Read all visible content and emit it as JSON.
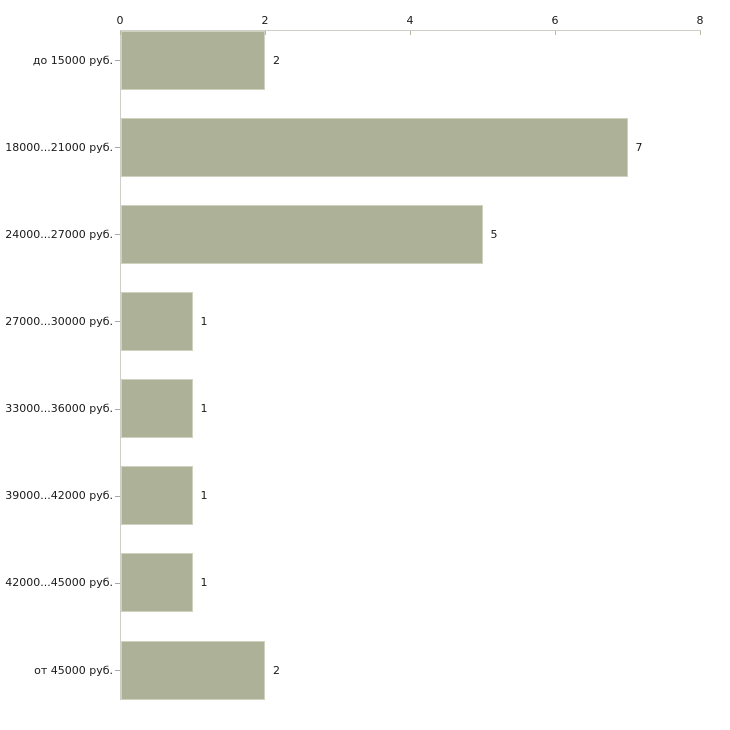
{
  "page": {
    "background": "#ffffff"
  },
  "chart_data": {
    "type": "bar",
    "orientation": "horizontal",
    "title": "",
    "xlabel": "",
    "ylabel": "",
    "grid": false,
    "legend": false,
    "x_axis": {
      "position": "top",
      "min": 0,
      "max": 8,
      "ticks": [
        0,
        2,
        4,
        6,
        8
      ]
    },
    "categories": [
      "до 15000 руб.",
      "18000...21000 руб.",
      "24000...27000 руб.",
      "27000...30000 руб.",
      "33000...36000 руб.",
      "39000...42000 руб.",
      "42000...45000 руб.",
      "от 45000 руб."
    ],
    "values": [
      2,
      7,
      5,
      1,
      1,
      1,
      1,
      2
    ],
    "value_labels": [
      "2",
      "7",
      "5",
      "1",
      "1",
      "1",
      "1",
      "2"
    ],
    "colors": {
      "bar_fill": "#acb197",
      "bar_border": "#ced2bf",
      "axis_line": "#cfcfca",
      "x_tick": "#b4b89c",
      "category_tick": "#a8a8a8",
      "text": "#1a1a1a"
    }
  }
}
